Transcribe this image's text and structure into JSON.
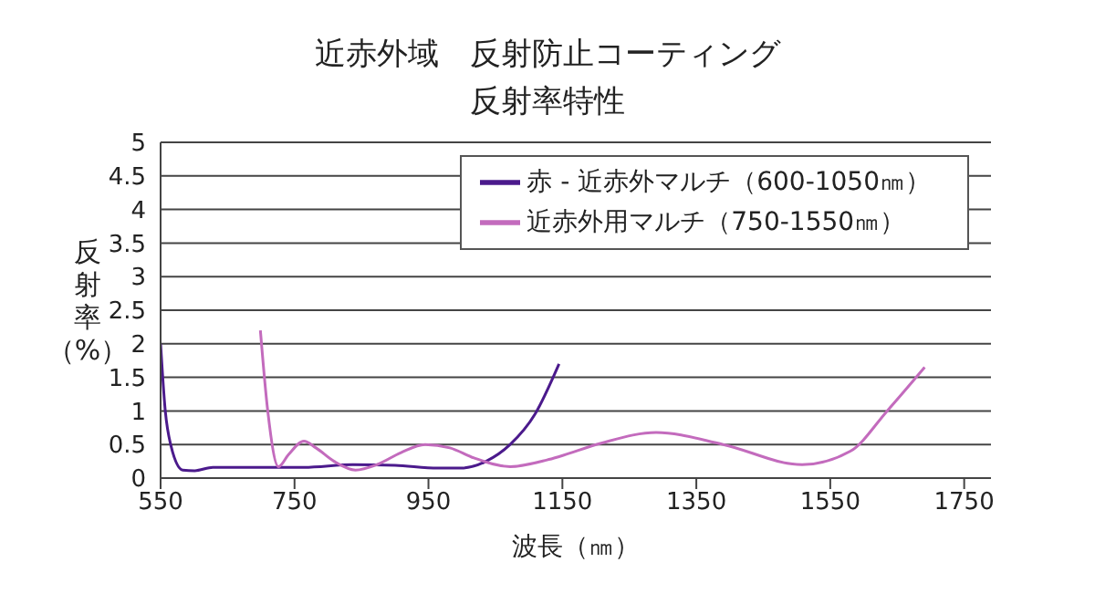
{
  "chart_data": {
    "type": "line",
    "title": "近赤外域　反射防止コーティング",
    "subtitle": "反射率特性",
    "xlabel": "波長（㎚）",
    "ylabel": "反射率（%）",
    "xlim": [
      550,
      1790
    ],
    "xticks": [
      550,
      750,
      950,
      1150,
      1350,
      1550,
      1750
    ],
    "ylim": [
      0,
      5
    ],
    "yticks": [
      0,
      0.5,
      1,
      1.5,
      2,
      2.5,
      3,
      3.5,
      4,
      4.5,
      5
    ],
    "grid": "y",
    "legend": "top right",
    "marker": "none",
    "line_style": "solid",
    "series": [
      {
        "name": "赤 - 近赤外マルチ（600-1050㎚）",
        "color": "#4b1a8c",
        "x": [
          550,
          557,
          565,
          583,
          601,
          628,
          673,
          764,
          837,
          900,
          964,
          1000,
          1036,
          1072,
          1109,
          1145
        ],
        "values": [
          2.0,
          1.0,
          0.5,
          0.12,
          0.11,
          0.16,
          0.16,
          0.16,
          0.2,
          0.19,
          0.15,
          0.15,
          0.25,
          0.5,
          0.95,
          1.7
        ]
      },
      {
        "name": "近赤外用マルチ（750-1550㎚）",
        "color": "#c36bbd",
        "x": [
          699,
          710,
          726,
          741,
          764,
          782,
          809,
          841,
          873,
          909,
          945,
          982,
          1018,
          1072,
          1127,
          1145,
          1208,
          1290,
          1390,
          1508,
          1580,
          1635,
          1691
        ],
        "values": [
          2.2,
          1.0,
          0.17,
          0.35,
          0.55,
          0.45,
          0.25,
          0.12,
          0.2,
          0.38,
          0.5,
          0.45,
          0.3,
          0.17,
          0.27,
          0.32,
          0.52,
          0.68,
          0.5,
          0.2,
          0.4,
          1.0,
          1.65
        ]
      }
    ]
  }
}
